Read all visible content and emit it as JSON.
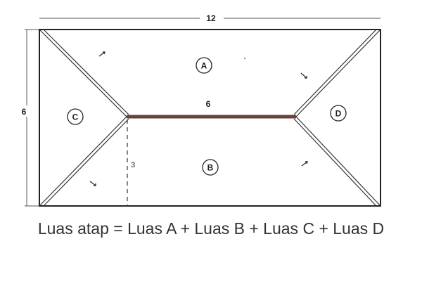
{
  "dimensions": {
    "top_width": "12",
    "left_height": "6",
    "ridge_length": "6",
    "half_height": "3"
  },
  "regions": {
    "a": "A",
    "b": "B",
    "c": "C",
    "d": "D"
  },
  "formula": "Luas atap = Luas A + Luas B + Luas C + Luas D",
  "colors": {
    "ridge": "#6b3f3a",
    "line": "#222222"
  }
}
